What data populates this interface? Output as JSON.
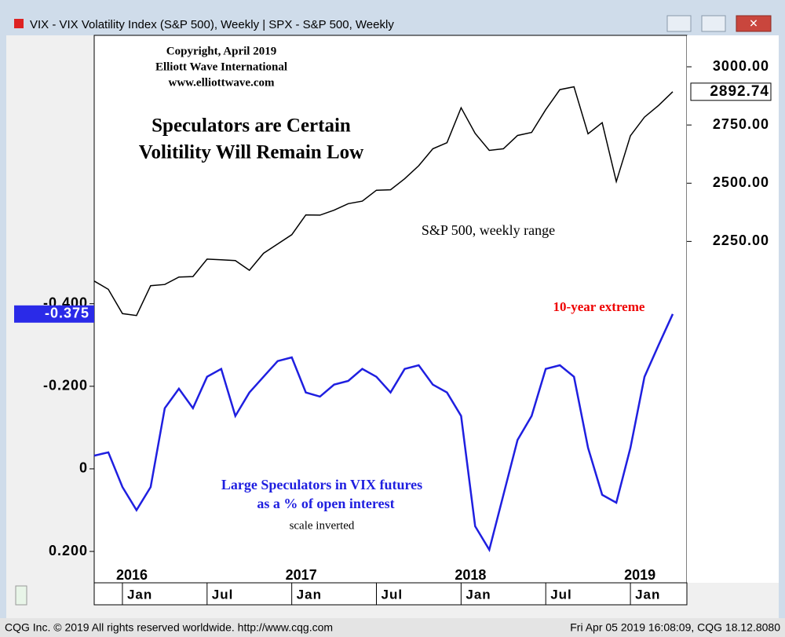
{
  "window_title": "VIX - VIX Volatility Index (S&P 500), Weekly  |  SPX - S&P 500, Weekly",
  "footer_left": "CQG Inc. © 2019 All rights reserved worldwide. http://www.cqg.com",
  "footer_right": "Fri Apr 05 2019 16:08:09, CQG 18.12.8080",
  "chart_data": {
    "type": "line",
    "annotations": [
      "Copyright, April 2019",
      "Elliott Wave International",
      "www.elliottwave.com",
      "Speculators are Certain",
      "Volitility Will Remain Low",
      "S&P 500, weekly range",
      "10-year extreme",
      "Large Speculators in VIX futures",
      "as a % of open interest",
      "scale inverted"
    ],
    "x": [
      "2015-11",
      "2015-12",
      "2016-01",
      "2016-02",
      "2016-03",
      "2016-04",
      "2016-05",
      "2016-06",
      "2016-07",
      "2016-08",
      "2016-09",
      "2016-10",
      "2016-11",
      "2016-12",
      "2017-01",
      "2017-02",
      "2017-03",
      "2017-04",
      "2017-05",
      "2017-06",
      "2017-07",
      "2017-08",
      "2017-09",
      "2017-10",
      "2017-11",
      "2017-12",
      "2018-01",
      "2018-02",
      "2018-03",
      "2018-04",
      "2018-05",
      "2018-06",
      "2018-07",
      "2018-08",
      "2018-09",
      "2018-10",
      "2018-11",
      "2018-12",
      "2019-01",
      "2019-02",
      "2019-03",
      "2019-04"
    ],
    "xlim": [
      "2015-11",
      "2019-04"
    ],
    "xticks": [
      {
        "value": "2016-01",
        "label": "Jan"
      },
      {
        "value": "2016-07",
        "label": "Jul"
      },
      {
        "value": "2017-01",
        "label": "Jan"
      },
      {
        "value": "2017-07",
        "label": "Jul"
      },
      {
        "value": "2018-01",
        "label": "Jan"
      },
      {
        "value": "2018-07",
        "label": "Jul"
      },
      {
        "value": "2019-01",
        "label": "Jan"
      }
    ],
    "x_year_labels": [
      {
        "value": "2016-01",
        "label": "2016"
      },
      {
        "value": "2017-01",
        "label": "2017"
      },
      {
        "value": "2018-01",
        "label": "2018"
      },
      {
        "value": "2019-01",
        "label": "2019"
      }
    ],
    "ylim": [
      -1.05,
      0.276
    ],
    "y_inverted": true,
    "yticks": [
      {
        "value": -0.4,
        "label": "-0.400"
      },
      {
        "value": -0.2,
        "label": "-0.200"
      },
      0,
      {
        "value": 0.2,
        "label": "0.200"
      }
    ],
    "y2lim": [
      784,
      3135
    ],
    "y2ticks": [
      {
        "value": 3000,
        "label": "3000.00"
      },
      {
        "value": 2750,
        "label": "2750.00"
      },
      {
        "value": 2500,
        "label": "2500.00"
      },
      {
        "value": 2250,
        "label": "2250.00"
      }
    ],
    "series": [
      {
        "name": "SPX - S&P 500, Weekly",
        "color": "#000000",
        "axis": "y2",
        "last_label": "2892.74",
        "values": [
          2080,
          2044,
          1940,
          1932,
          2060,
          2065,
          2097,
          2099,
          2174,
          2171,
          2168,
          2126,
          2199,
          2239,
          2279,
          2364,
          2363,
          2384,
          2412,
          2423,
          2470,
          2472,
          2519,
          2575,
          2648,
          2674,
          2824,
          2714,
          2641,
          2648,
          2705,
          2718,
          2816,
          2902,
          2914,
          2712,
          2760,
          2507,
          2704,
          2784,
          2834,
          2892.74
        ]
      },
      {
        "name": "VIX - VIX Volatility Index (S&P 500), Weekly",
        "color": "#1f1fe0",
        "axis": "y",
        "last_label": "-0.375",
        "values": [
          -0.032,
          -0.04,
          0.044,
          0.1,
          0.044,
          -0.147,
          -0.194,
          -0.147,
          -0.223,
          -0.242,
          -0.128,
          -0.185,
          -0.223,
          -0.261,
          -0.27,
          -0.185,
          -0.175,
          -0.204,
          -0.213,
          -0.242,
          -0.223,
          -0.185,
          -0.242,
          -0.251,
          -0.204,
          -0.185,
          -0.128,
          0.139,
          0.196,
          0.063,
          -0.07,
          -0.128,
          -0.242,
          -0.251,
          -0.223,
          -0.051,
          0.063,
          0.082,
          -0.051,
          -0.223,
          -0.3,
          -0.375
        ]
      }
    ]
  }
}
